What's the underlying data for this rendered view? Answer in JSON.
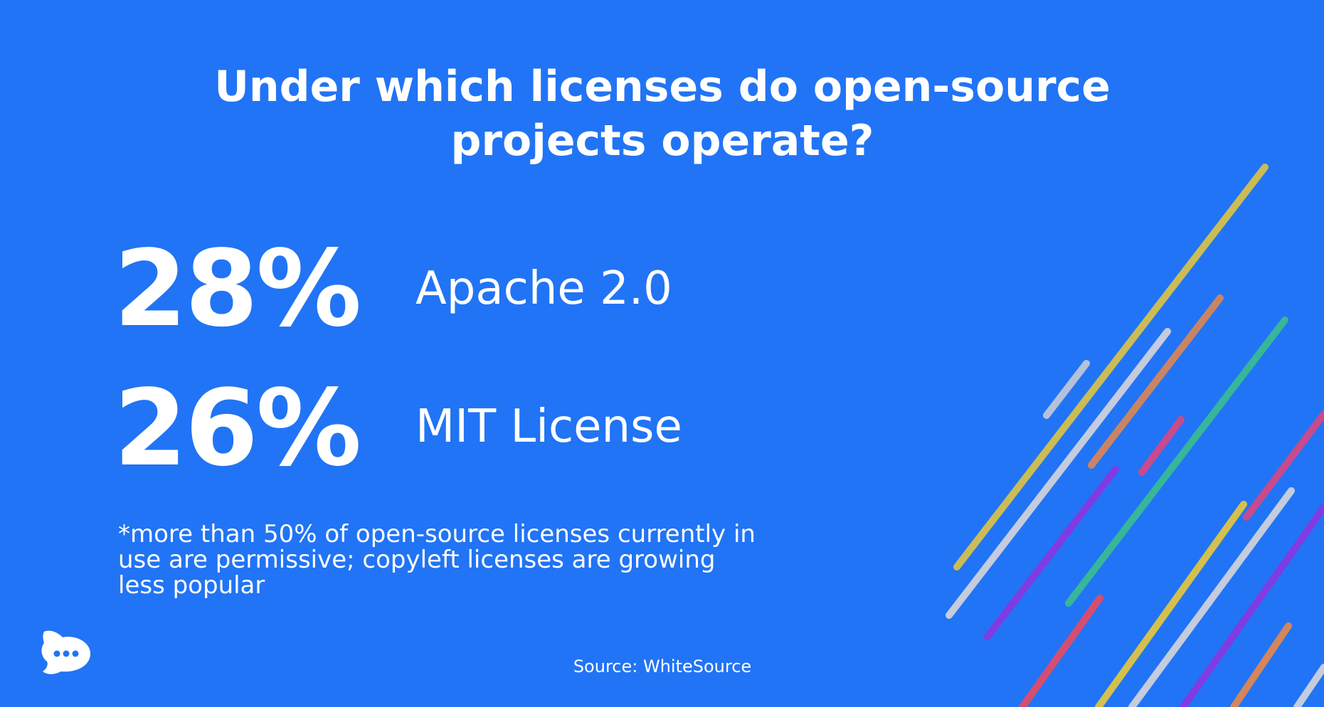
{
  "title": {
    "lines": [
      "Under which licenses do open-source",
      "projects operate?"
    ]
  },
  "stats": [
    {
      "value": "28%",
      "label": "Apache 2.0"
    },
    {
      "value": "26%",
      "label": "MIT License"
    }
  ],
  "footnote": {
    "lines": [
      "*more than 50% of open-source licenses currently in",
      "use are permissive; copyleft licenses are growing",
      "less popular"
    ]
  },
  "source": "Source: WhiteSource"
}
